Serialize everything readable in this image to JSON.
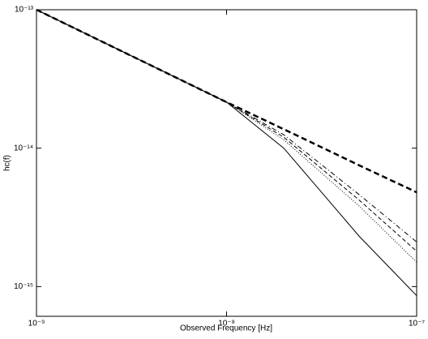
{
  "chart_data": {
    "type": "line",
    "xlabel": "Observed Frequency [Hz]",
    "ylabel": "hc(f)",
    "log_x": true,
    "log_y": true,
    "x": [
      1e-09,
      1e-08,
      2e-08,
      5e-08,
      1e-07
    ],
    "xlim": [
      1e-09,
      1e-07
    ],
    "xticks": [
      {
        "value": 1e-09,
        "label": "10⁻⁹"
      },
      {
        "value": 1e-08,
        "label": "10⁻⁸"
      },
      {
        "value": 1e-07,
        "label": "10⁻⁷"
      }
    ],
    "ylim": [
      6.1e-16,
      1e-13
    ],
    "yticks": [
      {
        "value": 1e-15,
        "label": "10⁻¹⁵"
      },
      {
        "value": 1e-14,
        "label": "10⁻¹⁴"
      },
      {
        "value": 1e-13,
        "label": "10⁻¹³"
      }
    ],
    "series": [
      {
        "color": "#000000",
        "style": "solid",
        "values": [
          1e-13,
          2.15e-14,
          1e-14,
          2.3e-15,
          8.6e-16
        ]
      },
      {
        "color": "#000000",
        "style": "dashdot",
        "values": [
          1e-13,
          2.15e-14,
          1.25e-14,
          4.6e-15,
          2.1e-15
        ]
      },
      {
        "color": "#000000",
        "style": "dashed",
        "values": [
          1e-13,
          2.15e-14,
          1.2e-14,
          4.2e-15,
          1.8e-15
        ]
      },
      {
        "color": "#000000",
        "style": "dotted",
        "values": [
          1e-13,
          2.15e-14,
          1.15e-14,
          3.8e-15,
          1.5e-15
        ]
      },
      {
        "color": "#000000",
        "style": "thick-dashed",
        "values": [
          1e-13,
          2.15e-14,
          1.37e-14,
          7.5e-15,
          4.8e-15
        ]
      }
    ]
  }
}
